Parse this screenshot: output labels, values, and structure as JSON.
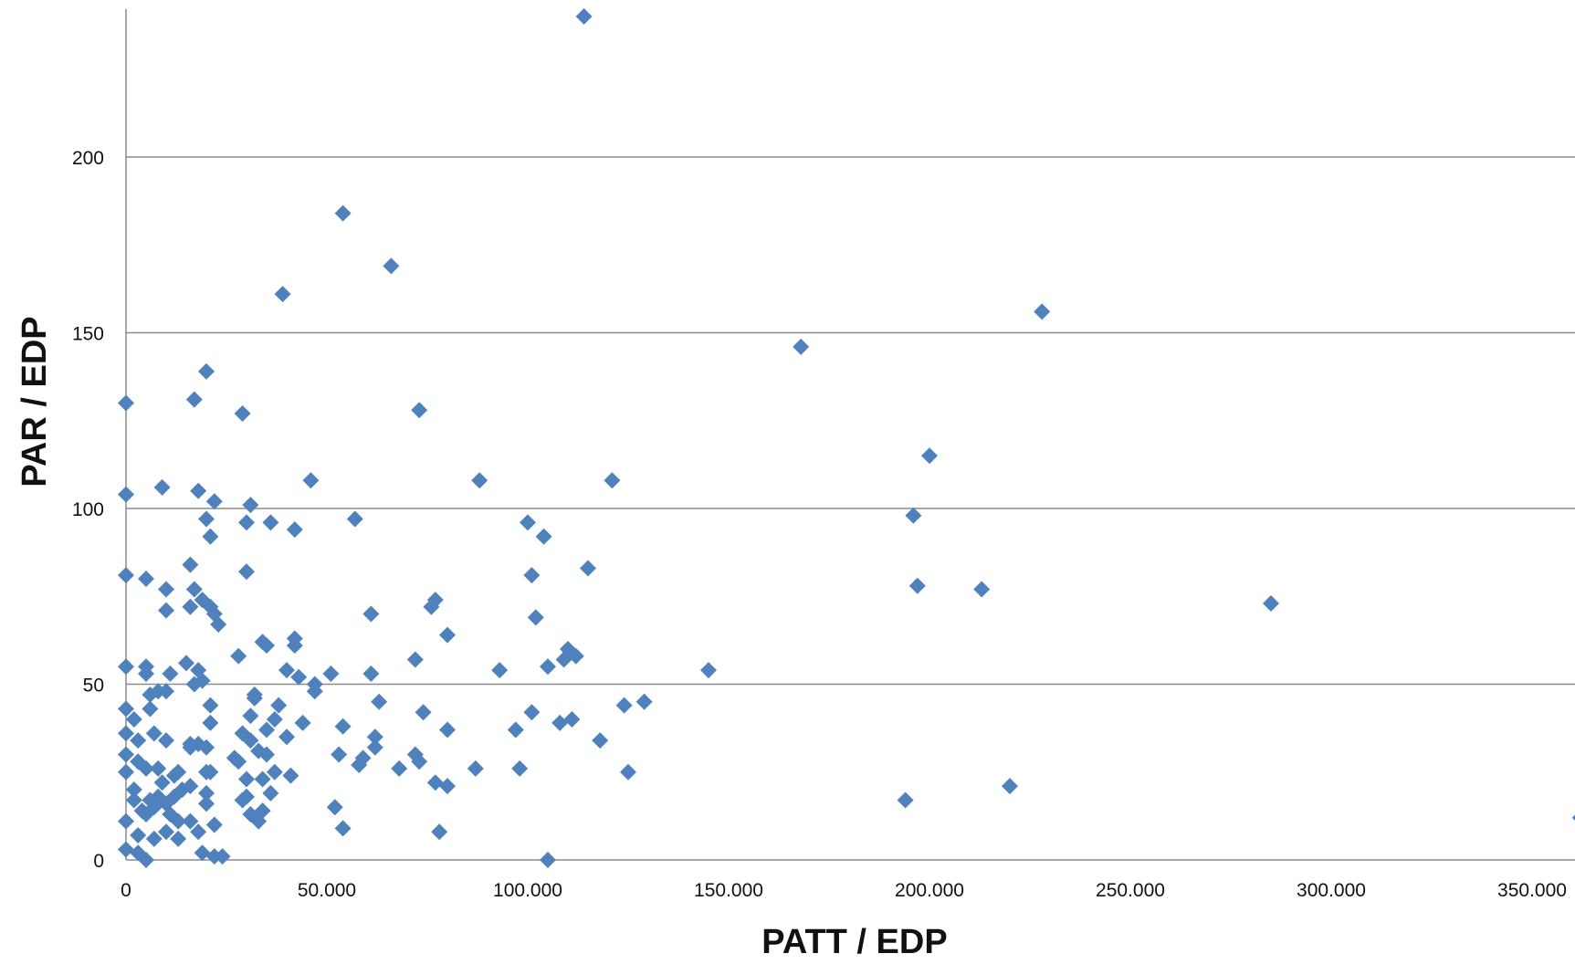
{
  "chart_data": {
    "type": "scatter",
    "title": "",
    "xlabel": "PATT / EDP",
    "ylabel": "PAR / EDP",
    "xlim": [
      0,
      360000
    ],
    "ylim": [
      0,
      240
    ],
    "x_ticks": [
      0,
      50000,
      100000,
      150000,
      200000,
      250000,
      300000,
      350000
    ],
    "x_tick_labels": [
      "0",
      "50.000",
      "100.000",
      "150.000",
      "200.000",
      "250.000",
      "300.000",
      "350.000"
    ],
    "y_ticks": [
      0,
      50,
      100,
      150,
      200
    ],
    "y_tick_labels": [
      "0",
      "50",
      "100",
      "150",
      "200"
    ],
    "grid": "horizontal",
    "legend": "none",
    "marker": "diamond",
    "colors": {
      "marker": "#4f81bd",
      "grid": "#8c8c8c",
      "axis": "#8c8c8c"
    },
    "series": [
      {
        "points": [
          [
            114000,
            240
          ],
          [
            54000,
            184
          ],
          [
            66000,
            169
          ],
          [
            39000,
            161
          ],
          [
            228000,
            156
          ],
          [
            168000,
            146
          ],
          [
            20000,
            139
          ],
          [
            17000,
            131
          ],
          [
            0,
            130
          ],
          [
            29000,
            127
          ],
          [
            73000,
            128
          ],
          [
            200000,
            115
          ],
          [
            0,
            104
          ],
          [
            9000,
            106
          ],
          [
            18000,
            105
          ],
          [
            46000,
            108
          ],
          [
            88000,
            108
          ],
          [
            121000,
            108
          ],
          [
            22000,
            102
          ],
          [
            31000,
            101
          ],
          [
            196000,
            98
          ],
          [
            20000,
            97
          ],
          [
            30000,
            96
          ],
          [
            36000,
            96
          ],
          [
            57000,
            97
          ],
          [
            42000,
            94
          ],
          [
            100000,
            96
          ],
          [
            104000,
            92
          ],
          [
            21000,
            92
          ],
          [
            16000,
            84
          ],
          [
            0,
            81
          ],
          [
            5000,
            80
          ],
          [
            30000,
            82
          ],
          [
            101000,
            81
          ],
          [
            115000,
            83
          ],
          [
            10000,
            77
          ],
          [
            17000,
            77
          ],
          [
            19000,
            74
          ],
          [
            21000,
            72
          ],
          [
            77000,
            74
          ],
          [
            197000,
            78
          ],
          [
            213000,
            77
          ],
          [
            285000,
            73
          ],
          [
            10000,
            71
          ],
          [
            16000,
            72
          ],
          [
            22000,
            70
          ],
          [
            23000,
            67
          ],
          [
            61000,
            70
          ],
          [
            76000,
            72
          ],
          [
            102000,
            69
          ],
          [
            34000,
            62
          ],
          [
            35000,
            61
          ],
          [
            42000,
            63
          ],
          [
            42000,
            61
          ],
          [
            80000,
            64
          ],
          [
            110000,
            60
          ],
          [
            112000,
            58
          ],
          [
            0,
            55
          ],
          [
            5000,
            55
          ],
          [
            5000,
            53
          ],
          [
            11000,
            53
          ],
          [
            15000,
            56
          ],
          [
            18000,
            54
          ],
          [
            19000,
            51
          ],
          [
            17000,
            50
          ],
          [
            28000,
            58
          ],
          [
            40000,
            54
          ],
          [
            43000,
            52
          ],
          [
            47000,
            50
          ],
          [
            47000,
            48
          ],
          [
            51000,
            53
          ],
          [
            61000,
            53
          ],
          [
            72000,
            57
          ],
          [
            93000,
            54
          ],
          [
            105000,
            55
          ],
          [
            109000,
            57
          ],
          [
            145000,
            54
          ],
          [
            0,
            43
          ],
          [
            2000,
            40
          ],
          [
            6000,
            43
          ],
          [
            6000,
            47
          ],
          [
            8000,
            48
          ],
          [
            10000,
            48
          ],
          [
            21000,
            44
          ],
          [
            32000,
            47
          ],
          [
            32000,
            46
          ],
          [
            38000,
            44
          ],
          [
            63000,
            45
          ],
          [
            74000,
            42
          ],
          [
            101000,
            42
          ],
          [
            124000,
            44
          ],
          [
            129000,
            45
          ],
          [
            0,
            36
          ],
          [
            3000,
            34
          ],
          [
            7000,
            36
          ],
          [
            10000,
            34
          ],
          [
            16000,
            33
          ],
          [
            16000,
            32
          ],
          [
            18000,
            33
          ],
          [
            20000,
            32
          ],
          [
            21000,
            39
          ],
          [
            29000,
            36
          ],
          [
            31000,
            34
          ],
          [
            31000,
            41
          ],
          [
            35000,
            37
          ],
          [
            37000,
            40
          ],
          [
            40000,
            35
          ],
          [
            44000,
            39
          ],
          [
            54000,
            38
          ],
          [
            62000,
            35
          ],
          [
            62000,
            32
          ],
          [
            80000,
            37
          ],
          [
            97000,
            37
          ],
          [
            108000,
            39
          ],
          [
            111000,
            40
          ],
          [
            118000,
            34
          ],
          [
            0,
            30
          ],
          [
            3000,
            28
          ],
          [
            5000,
            26
          ],
          [
            8000,
            26
          ],
          [
            9000,
            22
          ],
          [
            12000,
            24
          ],
          [
            13000,
            25
          ],
          [
            20000,
            25
          ],
          [
            21000,
            25
          ],
          [
            27000,
            29
          ],
          [
            28000,
            28
          ],
          [
            30000,
            23
          ],
          [
            33000,
            31
          ],
          [
            34000,
            23
          ],
          [
            35000,
            30
          ],
          [
            37000,
            25
          ],
          [
            41000,
            24
          ],
          [
            53000,
            30
          ],
          [
            58000,
            27
          ],
          [
            59000,
            29
          ],
          [
            68000,
            26
          ],
          [
            72000,
            30
          ],
          [
            73000,
            28
          ],
          [
            77000,
            22
          ],
          [
            80000,
            21
          ],
          [
            87000,
            26
          ],
          [
            98000,
            26
          ],
          [
            125000,
            25
          ],
          [
            220000,
            21
          ],
          [
            0,
            25
          ],
          [
            2000,
            20
          ],
          [
            2000,
            17
          ],
          [
            4000,
            14
          ],
          [
            6000,
            17
          ],
          [
            7000,
            15
          ],
          [
            8000,
            18
          ],
          [
            10000,
            16
          ],
          [
            12000,
            18
          ],
          [
            14000,
            20
          ],
          [
            16000,
            21
          ],
          [
            20000,
            19
          ],
          [
            20000,
            16
          ],
          [
            29000,
            17
          ],
          [
            30000,
            18
          ],
          [
            31000,
            13
          ],
          [
            33000,
            11
          ],
          [
            34000,
            14
          ],
          [
            36000,
            19
          ],
          [
            52000,
            15
          ],
          [
            54000,
            9
          ],
          [
            194000,
            17
          ],
          [
            362000,
            12
          ],
          [
            0,
            11
          ],
          [
            3000,
            7
          ],
          [
            5000,
            13
          ],
          [
            7000,
            6
          ],
          [
            10000,
            8
          ],
          [
            11000,
            13
          ],
          [
            13000,
            6
          ],
          [
            13000,
            11
          ],
          [
            16000,
            11
          ],
          [
            18000,
            8
          ],
          [
            22000,
            10
          ],
          [
            78000,
            8
          ],
          [
            0,
            3
          ],
          [
            3000,
            2
          ],
          [
            5000,
            0
          ],
          [
            19000,
            2
          ],
          [
            22000,
            1
          ],
          [
            24000,
            1
          ],
          [
            105000,
            0
          ]
        ]
      }
    ]
  }
}
